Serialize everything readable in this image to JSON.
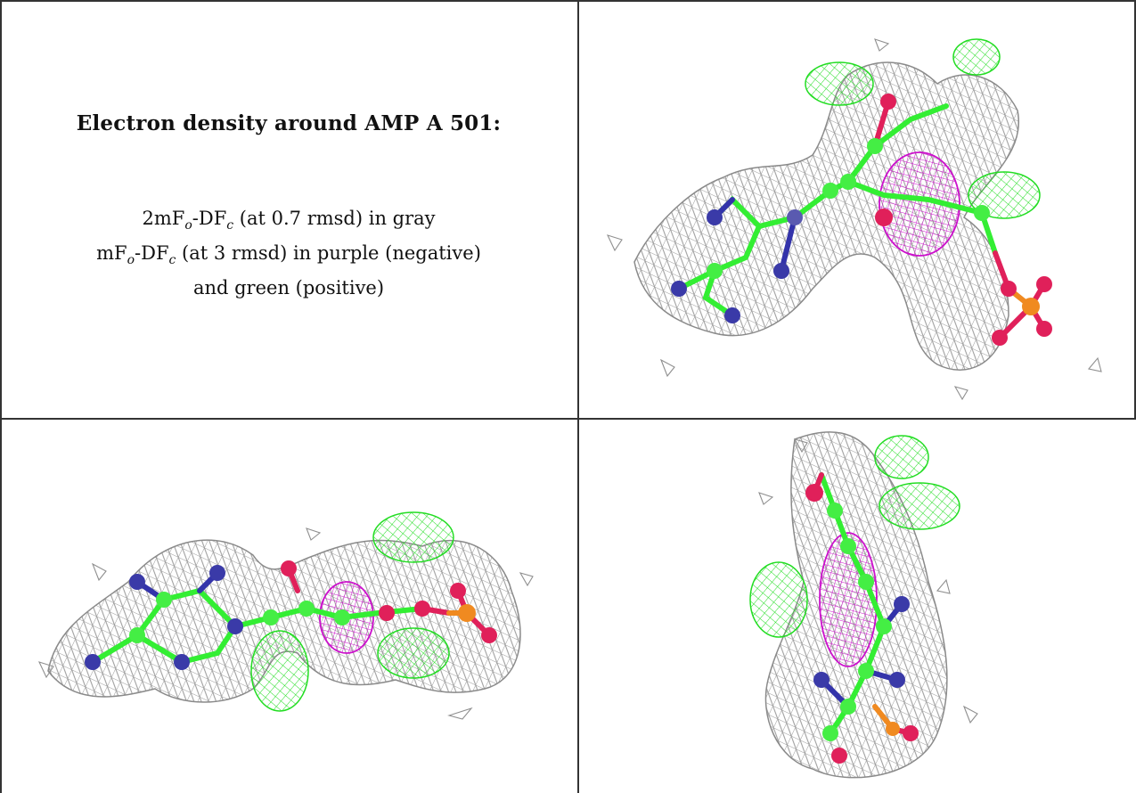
{
  "text_panel": {
    "title": "Electron density around AMP A 501:",
    "line1_prefix": "2mF",
    "line1_sub1": "o",
    "line1_mid": "-DF",
    "line1_sub2": "c",
    "line1_suffix": " (at 0.7 rmsd) in gray",
    "line2_prefix": "mF",
    "line2_sub1": "o",
    "line2_mid": "-DF",
    "line2_sub2": "c",
    "line2_suffix": " (at 3 rmsd) in purple (negative)",
    "line3": "and green (positive)"
  },
  "colors": {
    "mesh_gray": "#8f8f8f",
    "positive_green": "#22dd22",
    "negative_purple": "#cc11cc",
    "carbon": "#44ee44",
    "nitrogen": "#3333aa",
    "oxygen": "#e0205a",
    "phosphorus": "#f08a20"
  },
  "views": [
    {
      "name": "view-top-right"
    },
    {
      "name": "view-bottom-left"
    },
    {
      "name": "view-bottom-right"
    }
  ]
}
